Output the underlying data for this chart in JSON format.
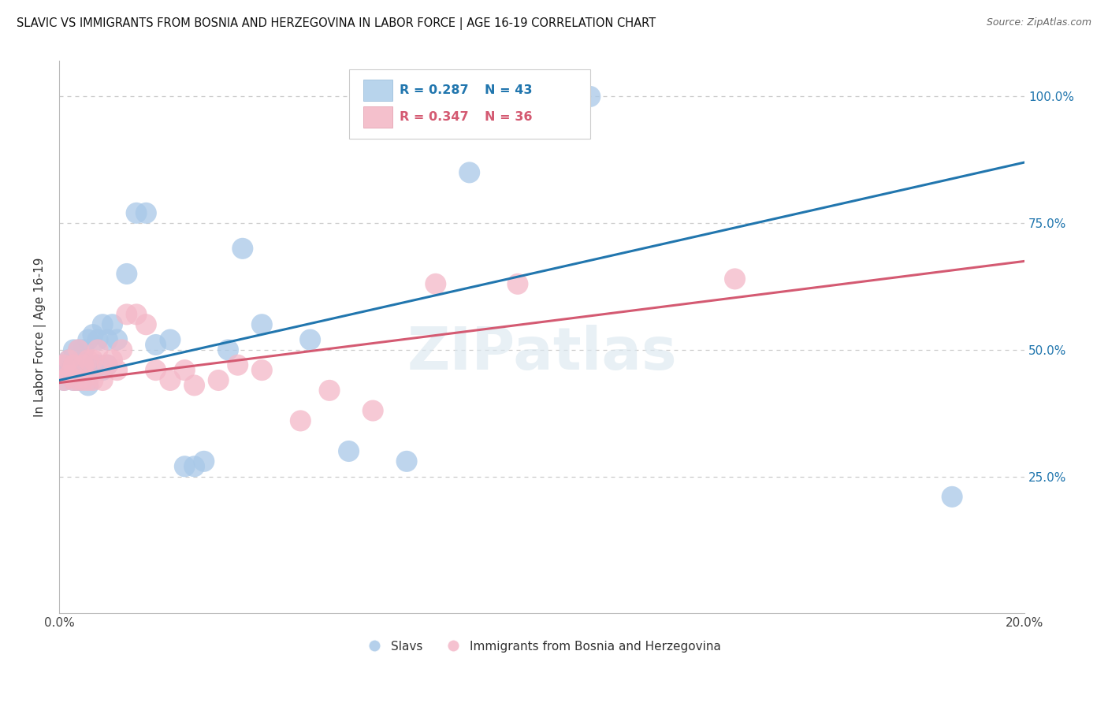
{
  "title": "SLAVIC VS IMMIGRANTS FROM BOSNIA AND HERZEGOVINA IN LABOR FORCE | AGE 16-19 CORRELATION CHART",
  "source_text": "Source: ZipAtlas.com",
  "ylabel": "In Labor Force | Age 16-19",
  "xlim": [
    0.0,
    0.2
  ],
  "ylim": [
    -0.02,
    1.07
  ],
  "xticks": [
    0.0,
    0.04,
    0.08,
    0.12,
    0.16,
    0.2
  ],
  "xticklabels": [
    "0.0%",
    "",
    "",
    "",
    "",
    "20.0%"
  ],
  "yticks_right": [
    0.0,
    0.25,
    0.5,
    0.75,
    1.0
  ],
  "ytick_labels_right": [
    "",
    "25.0%",
    "50.0%",
    "75.0%",
    "100.0%"
  ],
  "grid_color": "#cccccc",
  "background_color": "#ffffff",
  "blue_scatter_color": "#a8c8e8",
  "pink_scatter_color": "#f4b8c8",
  "blue_line_color": "#2176ae",
  "pink_line_color": "#d45a72",
  "legend_R_blue": "0.287",
  "legend_N_blue": "43",
  "legend_R_pink": "0.347",
  "legend_N_pink": "36",
  "legend_label_blue": "Slavs",
  "legend_label_pink": "Immigrants from Bosnia and Herzegovina",
  "watermark": "ZIPatlas",
  "blue_line_x0": 0.0,
  "blue_line_y0": 0.44,
  "blue_line_x1": 0.2,
  "blue_line_y1": 0.87,
  "pink_line_x0": 0.0,
  "pink_line_y0": 0.435,
  "pink_line_x1": 0.2,
  "pink_line_y1": 0.675,
  "slavs_x": [
    0.001,
    0.001,
    0.002,
    0.002,
    0.003,
    0.003,
    0.003,
    0.004,
    0.004,
    0.005,
    0.005,
    0.005,
    0.006,
    0.006,
    0.006,
    0.007,
    0.007,
    0.008,
    0.008,
    0.009,
    0.009,
    0.01,
    0.01,
    0.011,
    0.012,
    0.014,
    0.016,
    0.018,
    0.02,
    0.023,
    0.026,
    0.028,
    0.03,
    0.035,
    0.038,
    0.042,
    0.052,
    0.06,
    0.072,
    0.085,
    0.098,
    0.11,
    0.185
  ],
  "slavs_y": [
    0.44,
    0.47,
    0.46,
    0.48,
    0.44,
    0.47,
    0.5,
    0.44,
    0.5,
    0.45,
    0.48,
    0.5,
    0.43,
    0.47,
    0.52,
    0.46,
    0.53,
    0.47,
    0.52,
    0.46,
    0.55,
    0.47,
    0.52,
    0.55,
    0.52,
    0.65,
    0.77,
    0.77,
    0.51,
    0.52,
    0.27,
    0.27,
    0.28,
    0.5,
    0.7,
    0.55,
    0.52,
    0.3,
    0.28,
    0.85,
    1.0,
    1.0,
    0.21
  ],
  "bosnia_x": [
    0.001,
    0.001,
    0.002,
    0.002,
    0.003,
    0.003,
    0.004,
    0.004,
    0.005,
    0.005,
    0.006,
    0.006,
    0.007,
    0.007,
    0.008,
    0.009,
    0.01,
    0.011,
    0.012,
    0.013,
    0.014,
    0.016,
    0.018,
    0.02,
    0.023,
    0.026,
    0.028,
    0.033,
    0.037,
    0.042,
    0.05,
    0.056,
    0.065,
    0.078,
    0.095,
    0.14
  ],
  "bosnia_y": [
    0.44,
    0.47,
    0.45,
    0.48,
    0.44,
    0.47,
    0.44,
    0.5,
    0.44,
    0.47,
    0.44,
    0.48,
    0.48,
    0.44,
    0.5,
    0.44,
    0.47,
    0.48,
    0.46,
    0.5,
    0.57,
    0.57,
    0.55,
    0.46,
    0.44,
    0.46,
    0.43,
    0.44,
    0.47,
    0.46,
    0.36,
    0.42,
    0.38,
    0.63,
    0.63,
    0.64
  ]
}
